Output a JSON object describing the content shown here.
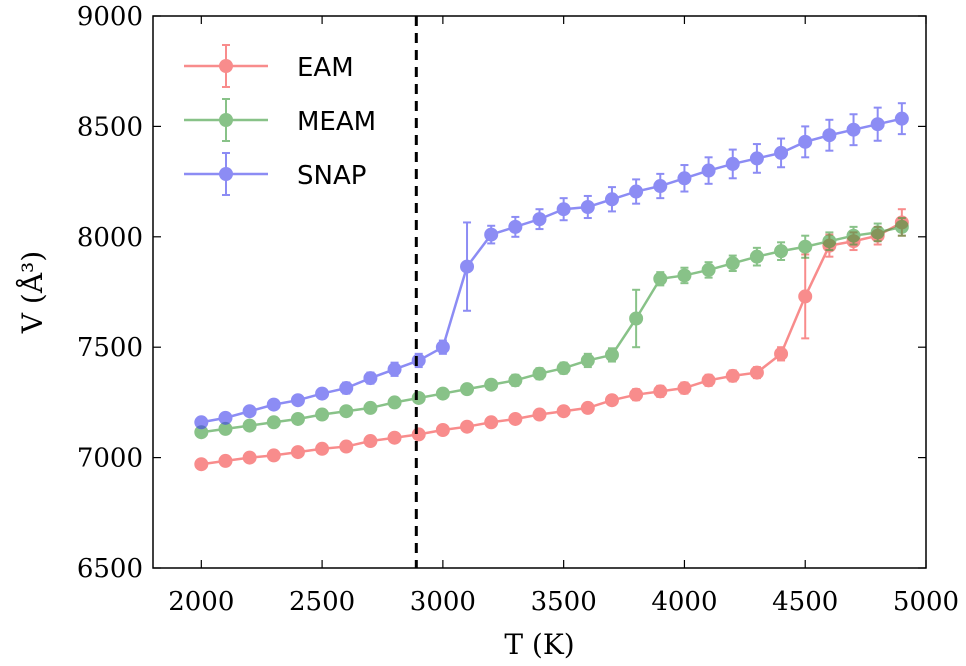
{
  "chart_data": {
    "type": "line",
    "xlabel": "T (K)",
    "ylabel": "V (Å³)",
    "xlim": [
      1800,
      5000
    ],
    "ylim": [
      6500,
      9000
    ],
    "xticks": [
      2000,
      2500,
      3000,
      3500,
      4000,
      4500,
      5000
    ],
    "yticks": [
      6500,
      7000,
      7500,
      8000,
      8500,
      9000
    ],
    "vline_x": 2890,
    "grid": false,
    "legend_position": "top-left",
    "series": [
      {
        "name": "EAM",
        "color": "#f44040",
        "x": [
          2000,
          2100,
          2200,
          2300,
          2400,
          2500,
          2600,
          2700,
          2800,
          2900,
          3000,
          3100,
          3200,
          3300,
          3400,
          3500,
          3600,
          3700,
          3800,
          3900,
          4000,
          4100,
          4200,
          4300,
          4400,
          4500,
          4600,
          4700,
          4800,
          4900
        ],
        "y": [
          6970,
          6985,
          7000,
          7010,
          7025,
          7040,
          7050,
          7075,
          7090,
          7105,
          7125,
          7140,
          7160,
          7175,
          7195,
          7210,
          7225,
          7260,
          7285,
          7300,
          7315,
          7350,
          7370,
          7385,
          7470,
          7730,
          7960,
          7980,
          8005,
          8065
        ],
        "err": [
          15,
          15,
          15,
          15,
          15,
          15,
          18,
          18,
          18,
          18,
          18,
          20,
          20,
          20,
          20,
          22,
          22,
          22,
          25,
          25,
          25,
          25,
          25,
          25,
          30,
          190,
          50,
          40,
          40,
          60
        ]
      },
      {
        "name": "MEAM",
        "color": "#3a9a3a",
        "x": [
          2000,
          2100,
          2200,
          2300,
          2400,
          2500,
          2600,
          2700,
          2800,
          2900,
          3000,
          3100,
          3200,
          3300,
          3400,
          3500,
          3600,
          3700,
          3800,
          3900,
          4000,
          4100,
          4200,
          4300,
          4400,
          4500,
          4600,
          4700,
          4800,
          4900
        ],
        "y": [
          7115,
          7130,
          7145,
          7160,
          7175,
          7195,
          7210,
          7225,
          7250,
          7270,
          7290,
          7310,
          7330,
          7350,
          7380,
          7405,
          7440,
          7465,
          7630,
          7810,
          7825,
          7850,
          7880,
          7910,
          7935,
          7955,
          7980,
          8005,
          8020,
          8045
        ],
        "err": [
          15,
          15,
          15,
          15,
          15,
          18,
          18,
          18,
          18,
          20,
          20,
          20,
          20,
          25,
          25,
          25,
          30,
          30,
          130,
          30,
          35,
          35,
          35,
          40,
          40,
          50,
          40,
          40,
          40,
          40
        ]
      },
      {
        "name": "SNAP",
        "color": "#4040ee",
        "x": [
          2000,
          2100,
          2200,
          2300,
          2400,
          2500,
          2600,
          2700,
          2800,
          2900,
          3000,
          3100,
          3200,
          3300,
          3400,
          3500,
          3600,
          3700,
          3800,
          3900,
          4000,
          4100,
          4200,
          4300,
          4400,
          4500,
          4600,
          4700,
          4800,
          4900
        ],
        "y": [
          7160,
          7180,
          7210,
          7240,
          7260,
          7290,
          7315,
          7360,
          7400,
          7440,
          7500,
          7865,
          8010,
          8045,
          8080,
          8125,
          8135,
          8170,
          8205,
          8230,
          8265,
          8300,
          8330,
          8355,
          8380,
          8430,
          8460,
          8485,
          8510,
          8535
        ],
        "err": [
          18,
          18,
          20,
          20,
          20,
          22,
          25,
          25,
          30,
          30,
          30,
          200,
          40,
          45,
          45,
          50,
          50,
          55,
          55,
          55,
          60,
          60,
          65,
          65,
          65,
          70,
          70,
          70,
          75,
          70
        ]
      }
    ]
  }
}
